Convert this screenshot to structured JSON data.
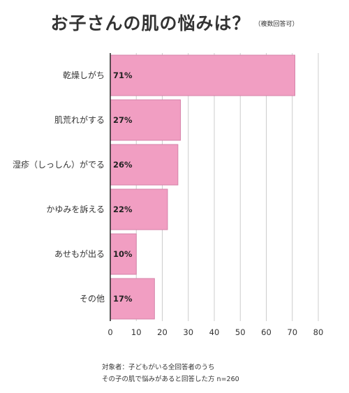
{
  "header": {
    "title": "お子さんの肌の悩みは？",
    "note": "（複数回答可）"
  },
  "footnote": {
    "line1": "対象者：子どもがいる全回答者のうち",
    "line2": "その子の肌で悩みがあると回答した方",
    "n": "n=260"
  },
  "colors": {
    "bar": "#f19ec2",
    "bar_edge": "#d581a8",
    "grid": "#cccccc",
    "axis": "#222222",
    "text": "#333333"
  },
  "chart_data": {
    "type": "bar",
    "orientation": "horizontal",
    "title": "お子さんの肌の悩みは？",
    "categories": [
      "乾燥しがち",
      "肌荒れがする",
      "湿疹（しっしん）がでる",
      "かゆみを訴える",
      "あせもが出る",
      "その他"
    ],
    "values": [
      71,
      27,
      26,
      22,
      10,
      17
    ],
    "value_labels": [
      "71%",
      "27%",
      "26%",
      "22%",
      "10%",
      "17%"
    ],
    "xlim": [
      0,
      80
    ],
    "xticks": [
      0,
      10,
      20,
      30,
      40,
      50,
      60,
      70,
      80
    ],
    "xtick_labels": [
      "0",
      "10",
      "20",
      "30",
      "40",
      "50",
      "60",
      "70",
      "80"
    ],
    "grid": true
  }
}
